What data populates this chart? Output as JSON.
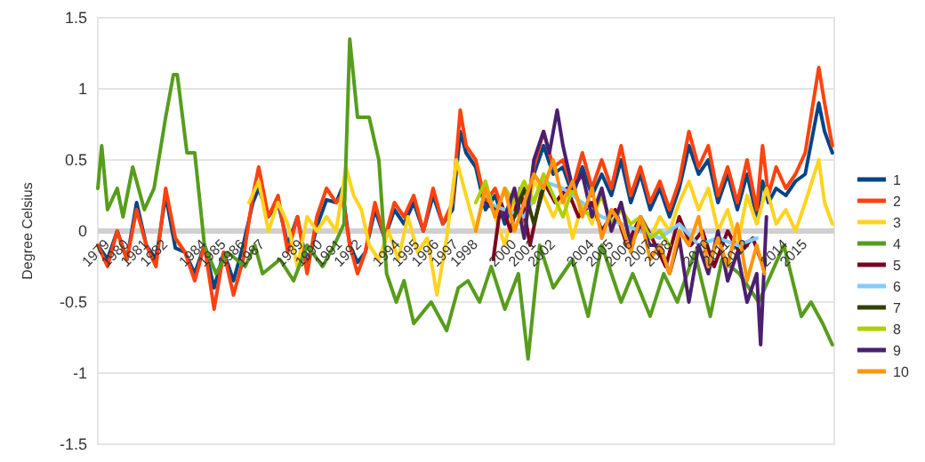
{
  "chart_data": {
    "type": "line",
    "ylabel": "Degree Celsius",
    "xlim": [
      1979,
      2017
    ],
    "ylim": [
      -1.5,
      1.5
    ],
    "yticks": [
      -1.5,
      -1,
      -0.5,
      0,
      0.5,
      1,
      1.5
    ],
    "xticks": [
      1979,
      1980,
      1981,
      1982,
      1984,
      1985,
      1986,
      1987,
      1989,
      1990,
      1991,
      1992,
      1994,
      1995,
      1996,
      1997,
      1998,
      2000,
      2001,
      2002,
      2004,
      2005,
      2006,
      2007,
      2008,
      2010,
      2011,
      2012,
      2014,
      2015
    ],
    "grid": "y",
    "legend": "right",
    "marker": "none",
    "line_style": "solid",
    "series": [
      {
        "name": "1",
        "color": "#004586",
        "x": [
          1979,
          1979.5,
          1980,
          1980.5,
          1981,
          1981.5,
          1982,
          1982.5,
          1983,
          1983.5,
          1984,
          1984.5,
          1985,
          1985.5,
          1986,
          1986.5,
          1987,
          1987.3,
          1987.8,
          1988.3,
          1988.8,
          1989.3,
          1989.8,
          1990.3,
          1990.8,
          1991.3,
          1991.6,
          1992,
          1992.4,
          1992.8,
          1993.3,
          1993.8,
          1994.3,
          1994.8,
          1995.3,
          1995.8,
          1996.3,
          1996.8,
          1997.3,
          1997.7,
          1998,
          1998.5,
          1999,
          1999.5,
          2000,
          2000.5,
          2001,
          2001.5,
          2002,
          2002.5,
          2003,
          2003.5,
          2004,
          2004.5,
          2005,
          2005.5,
          2006,
          2006.5,
          2007,
          2007.5,
          2008,
          2008.5,
          2009,
          2009.5,
          2010,
          2010.5,
          2011,
          2011.5,
          2012,
          2012.5,
          2013,
          2013.3,
          2013.6,
          2014,
          2014.5,
          2015,
          2015.5,
          2016.2,
          2016.5,
          2016.9
        ],
        "values": [
          -0.1,
          -0.2,
          0,
          -0.2,
          0.2,
          -0.1,
          -0.2,
          0.25,
          -0.12,
          -0.15,
          -0.3,
          -0.1,
          -0.4,
          -0.15,
          -0.35,
          -0.1,
          0.2,
          0.3,
          0.1,
          0.2,
          -0.1,
          0.1,
          -0.25,
          0.03,
          0.22,
          0.2,
          0.3,
          -0.1,
          -0.22,
          -0.15,
          0.15,
          -0.05,
          0.15,
          0.05,
          0.2,
          0,
          0.25,
          0.05,
          0.15,
          0.7,
          0.55,
          0.45,
          0.15,
          0.25,
          0.05,
          0.2,
          0,
          0.4,
          0.6,
          0.4,
          0.45,
          0.25,
          0.45,
          0.25,
          0.4,
          0.25,
          0.5,
          0.2,
          0.4,
          0.15,
          0.3,
          0.1,
          0.3,
          0.6,
          0.4,
          0.5,
          0.2,
          0.4,
          0.15,
          0.4,
          0.1,
          0.35,
          0.2,
          0.3,
          0.25,
          0.35,
          0.4,
          0.9,
          0.7,
          0.55
        ]
      },
      {
        "name": "2",
        "color": "#ff420e",
        "x": [
          1979,
          1979.5,
          1980,
          1980.5,
          1981,
          1981.5,
          1982,
          1982.5,
          1983,
          1983.5,
          1984,
          1984.5,
          1985,
          1985.5,
          1986,
          1986.5,
          1987,
          1987.3,
          1987.8,
          1988.3,
          1988.8,
          1989.3,
          1989.8,
          1990.3,
          1990.8,
          1991.3,
          1991.6,
          1992,
          1992.4,
          1992.8,
          1993.3,
          1993.8,
          1994.3,
          1994.8,
          1995.3,
          1995.8,
          1996.3,
          1996.8,
          1997.3,
          1997.7,
          1998,
          1998.5,
          1999,
          1999.5,
          2000,
          2000.5,
          2001,
          2001.5,
          2002,
          2002.5,
          2003,
          2003.5,
          2004,
          2004.5,
          2005,
          2005.5,
          2006,
          2006.5,
          2007,
          2007.5,
          2008,
          2008.5,
          2009,
          2009.5,
          2010,
          2010.5,
          2011,
          2011.5,
          2012,
          2012.5,
          2013,
          2013.3,
          2013.6,
          2014,
          2014.5,
          2015,
          2015.5,
          2016.2,
          2016.5,
          2016.9
        ],
        "values": [
          -0.1,
          -0.25,
          0,
          -0.2,
          0.15,
          -0.1,
          -0.25,
          0.3,
          -0.05,
          -0.15,
          -0.35,
          -0.1,
          -0.55,
          -0.15,
          -0.45,
          -0.2,
          0.25,
          0.45,
          0.1,
          0.25,
          -0.15,
          0.1,
          -0.3,
          0.1,
          0.3,
          0.2,
          0.25,
          -0.1,
          -0.3,
          -0.15,
          0.2,
          -0.05,
          0.2,
          0.1,
          0.25,
          0,
          0.3,
          0.05,
          0.2,
          0.85,
          0.6,
          0.5,
          0.2,
          0.3,
          0.1,
          0.25,
          0.05,
          0.45,
          0.7,
          0.45,
          0.5,
          0.3,
          0.55,
          0.3,
          0.5,
          0.3,
          0.6,
          0.25,
          0.45,
          0.2,
          0.35,
          0.15,
          0.35,
          0.7,
          0.45,
          0.6,
          0.25,
          0.45,
          0.2,
          0.5,
          0.15,
          0.6,
          0.25,
          0.45,
          0.3,
          0.4,
          0.55,
          1.15,
          0.9,
          0.6
        ]
      },
      {
        "name": "3",
        "color": "#ffd320",
        "x": [
          1986.8,
          1987.3,
          1987.8,
          1988.3,
          1988.8,
          1989.3,
          1989.8,
          1990.3,
          1990.8,
          1991.3,
          1991.8,
          1992.2,
          1992.6,
          1993,
          1993.5,
          1994,
          1994.5,
          1995,
          1995.5,
          1996,
          1996.5,
          1997,
          1997.5,
          1998,
          1998.5,
          1999,
          1999.5,
          2000,
          2000.5,
          2001,
          2001.5,
          2002,
          2002.5,
          2003,
          2003.5,
          2004,
          2004.5,
          2005,
          2005.5,
          2006,
          2006.5,
          2007,
          2007.5,
          2008,
          2008.5,
          2009,
          2009.5,
          2010,
          2010.5,
          2011,
          2011.5,
          2012,
          2012.5,
          2013,
          2013.5,
          2014,
          2014.5,
          2015,
          2015.5,
          2016.2,
          2016.5,
          2016.9
        ],
        "values": [
          0.2,
          0.35,
          0,
          0.2,
          0.05,
          -0.25,
          0.1,
          0,
          0.1,
          0,
          0.45,
          0.25,
          0.15,
          -0.1,
          -0.2,
          0,
          -0.2,
          0.1,
          -0.15,
          -0.05,
          -0.45,
          -0.05,
          0.5,
          0.25,
          0,
          0.3,
          0.1,
          -0.1,
          0.2,
          0,
          0.35,
          0.25,
          0.1,
          0.25,
          -0.05,
          0.2,
          0.05,
          0.3,
          0,
          0.2,
          -0.1,
          0.1,
          -0.05,
          0.1,
          0,
          0.2,
          0.35,
          0.15,
          0.3,
          0,
          0.15,
          -0.1,
          0.25,
          0.05,
          0.3,
          0.05,
          0.15,
          0,
          0.2,
          0.5,
          0.2,
          0.05
        ]
      },
      {
        "name": "4",
        "color": "#579d1c",
        "x": [
          1979,
          1979.2,
          1979.5,
          1980,
          1980.3,
          1980.8,
          1981.4,
          1981.9,
          1982.5,
          1982.9,
          1983.1,
          1983.6,
          1984,
          1984.5,
          1985.1,
          1985.7,
          1986.6,
          1987.1,
          1987.5,
          1988.4,
          1989.1,
          1989.8,
          1990.6,
          1991.2,
          1991.7,
          1992,
          1992.4,
          1993,
          1993.5,
          1993.9,
          1994.4,
          1994.8,
          1995.3,
          1996.2,
          1997,
          1997.6,
          1998.1,
          1998.7,
          1999.3,
          2000,
          2000.7,
          2001.2,
          2001.8,
          2002.5,
          2003.5,
          2004.3,
          2005,
          2006,
          2006.6,
          2007.5,
          2008.2,
          2008.9,
          2009.8,
          2010.6,
          2011.2,
          2012.1,
          2013.1,
          2014.4,
          2015.3,
          2015.8,
          2016.4,
          2016.9
        ],
        "values": [
          0.3,
          0.6,
          0.15,
          0.3,
          0.1,
          0.45,
          0.15,
          0.3,
          0.8,
          1.1,
          1.1,
          0.55,
          0.55,
          -0.1,
          -0.3,
          -0.15,
          -0.25,
          -0.1,
          -0.3,
          -0.2,
          -0.35,
          -0.1,
          -0.25,
          -0.1,
          0.05,
          1.35,
          0.8,
          0.8,
          0.5,
          -0.3,
          -0.5,
          -0.35,
          -0.65,
          -0.5,
          -0.7,
          -0.4,
          -0.35,
          -0.5,
          -0.25,
          -0.55,
          -0.3,
          -0.9,
          -0.1,
          -0.4,
          -0.2,
          -0.6,
          -0.1,
          -0.5,
          -0.3,
          -0.6,
          -0.3,
          -0.5,
          -0.15,
          -0.6,
          -0.2,
          -0.3,
          -0.5,
          -0.1,
          -0.6,
          -0.5,
          -0.65,
          -0.8
        ]
      },
      {
        "name": "5",
        "color": "#7e0021",
        "x": [
          1999.4,
          1999.8,
          2000.3,
          2000.8,
          2001.3,
          2002,
          2002.6,
          2003.2,
          2003.8,
          2004.5,
          2005,
          2005.7,
          2006.3,
          2007,
          2007.6,
          2008.3,
          2009,
          2009.6,
          2010.2,
          2010.8,
          2011.5,
          2012.1,
          2012.8,
          2013.2
        ],
        "values": [
          -0.2,
          0.2,
          0,
          0.3,
          -0.1,
          0.35,
          0.2,
          0.3,
          0.1,
          0.2,
          0,
          0.15,
          -0.1,
          0.1,
          -0.05,
          -0.25,
          0.1,
          -0.1,
          0,
          -0.25,
          0,
          -0.15,
          -0.05,
          -0.2
        ]
      },
      {
        "name": "6",
        "color": "#83caff",
        "x": [
          1999,
          2000,
          2001,
          2002,
          2003,
          2004,
          2005,
          2006,
          2007,
          2008,
          2009,
          2010,
          2011,
          2012,
          2013
        ],
        "values": [
          0.2,
          0.15,
          0.1,
          0.35,
          0.3,
          0.2,
          0.1,
          0.05,
          0,
          -0.05,
          0.05,
          -0.1,
          -0.05,
          -0.1,
          -0.05
        ]
      },
      {
        "name": "7",
        "color": "#314004",
        "x": [
          2000.5,
          2001,
          2001.5,
          2002
        ],
        "values": [
          0.1,
          0.3,
          0.05,
          0.3
        ]
      },
      {
        "name": "8",
        "color": "#aecf00",
        "x": [
          1998.5,
          1999,
          1999.5,
          2000,
          2000.5,
          2001,
          2001.5,
          2002,
          2002.5,
          2003,
          2003.5,
          2004,
          2004.5,
          2005,
          2005.5,
          2006,
          2006.5,
          2007,
          2007.5,
          2008,
          2008.5
        ],
        "values": [
          0.2,
          0.35,
          0.1,
          0.3,
          0.2,
          0.35,
          0.2,
          0.4,
          0.25,
          0.1,
          0.3,
          0.15,
          0.1,
          0.25,
          0.05,
          0.15,
          0.05,
          0.1,
          -0.05,
          0,
          -0.1
        ]
      },
      {
        "name": "9",
        "color": "#4b1f6f",
        "x": [
          1999,
          2000,
          2000.5,
          2001,
          2001.5,
          2002,
          2002.3,
          2002.7,
          2003,
          2003.5,
          2004,
          2004.5,
          2005,
          2005.5,
          2006,
          2006.5,
          2007,
          2007.5,
          2008,
          2008.5,
          2009,
          2009.5,
          2010,
          2010.5,
          2011,
          2011.5,
          2012,
          2012.5,
          2013,
          2013.2,
          2013.5
        ],
        "values": [
          0.2,
          0.1,
          0.3,
          -0.05,
          0.5,
          0.7,
          0.55,
          0.85,
          0.6,
          0.3,
          0.4,
          0.1,
          0.3,
          0,
          0.2,
          -0.1,
          0.05,
          -0.1,
          -0.1,
          -0.3,
          -0.05,
          -0.5,
          -0.1,
          -0.3,
          0,
          -0.35,
          -0.15,
          -0.5,
          -0.3,
          -0.8,
          0.1
        ]
      },
      {
        "name": "10",
        "color": "#ff950e",
        "x": [
          1998.5,
          1999,
          1999.5,
          2000,
          2000.5,
          2001,
          2001.5,
          2002,
          2002.5,
          2003,
          2003.5,
          2004,
          2004.5,
          2005,
          2005.5,
          2006,
          2006.5,
          2007,
          2007.5,
          2008,
          2008.5,
          2009,
          2009.5,
          2010,
          2010.5,
          2011,
          2011.5,
          2012,
          2012.5,
          2013,
          2013.4
        ],
        "values": [
          0,
          0.3,
          0.1,
          0.3,
          0,
          0.2,
          0.4,
          0.3,
          0.5,
          0.2,
          0.35,
          0.1,
          0.3,
          -0.05,
          0.15,
          0.05,
          -0.15,
          0.1,
          -0.2,
          -0.1,
          -0.3,
          0,
          -0.1,
          0.1,
          -0.25,
          -0.05,
          -0.25,
          0.05,
          -0.35,
          -0.1,
          -0.3
        ]
      }
    ]
  }
}
